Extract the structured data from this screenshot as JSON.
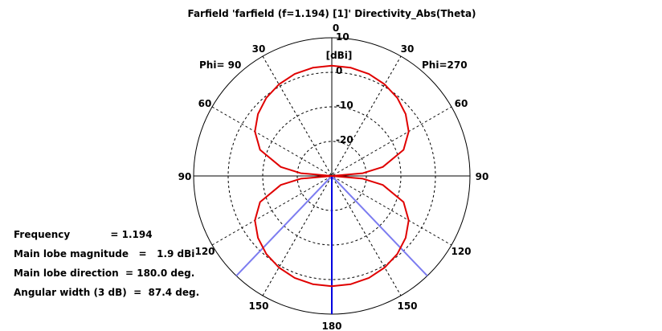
{
  "chart_data": {
    "type": "polar",
    "title": "Farfield 'farfield (f=1.194) [1]' Directivity_Abs(Theta)",
    "unit_label": "[dBi]",
    "phi_left_label": "Phi= 90",
    "phi_right_label": "Phi=270",
    "radial_ticks": [
      "10",
      "0",
      "-10",
      "-20"
    ],
    "angle_labels": {
      "top": "0",
      "upper_left_30": "30",
      "upper_right_30": "30",
      "left_60": "60",
      "right_60": "60",
      "left_90": "90",
      "right_90": "90",
      "left_120": "120",
      "right_120": "120",
      "lower_left_150": "150",
      "lower_right_150": "150",
      "bottom": "180"
    },
    "series": [
      {
        "color": "#e00000",
        "theta_deg": [
          0,
          10,
          20,
          30,
          40,
          50,
          60,
          70,
          80,
          85,
          90,
          95,
          100,
          110,
          120,
          130,
          140,
          150,
          160,
          170,
          180
        ],
        "directivity_dbi": [
          1.9,
          1.8,
          1.4,
          0.6,
          -0.5,
          -2.1,
          -4.3,
          -7.9,
          -15.0,
          -21.0,
          -30.0,
          -21.0,
          -15.0,
          -7.9,
          -4.3,
          -2.1,
          -0.5,
          0.6,
          1.4,
          1.8,
          1.9
        ]
      }
    ],
    "main_lobe_direction_deg": 180.0,
    "beamwidth_3db_deg": 87.4,
    "radial_range_dbi": [
      -30,
      10
    ],
    "grid": true
  },
  "info": {
    "frequency": "Frequency            = 1.194",
    "main_lobe_magnitude": "Main lobe magnitude   =   1.9 dBi",
    "main_lobe_direction": "Main lobe direction  = 180.0 deg.",
    "angular_width": "Angular width (3 dB)  =  87.4 deg."
  },
  "colors": {
    "pattern": "#e00000",
    "main_lobe_line": "#0000e0",
    "beamwidth_lines": "#7c7cf0",
    "grid": "#000000"
  }
}
